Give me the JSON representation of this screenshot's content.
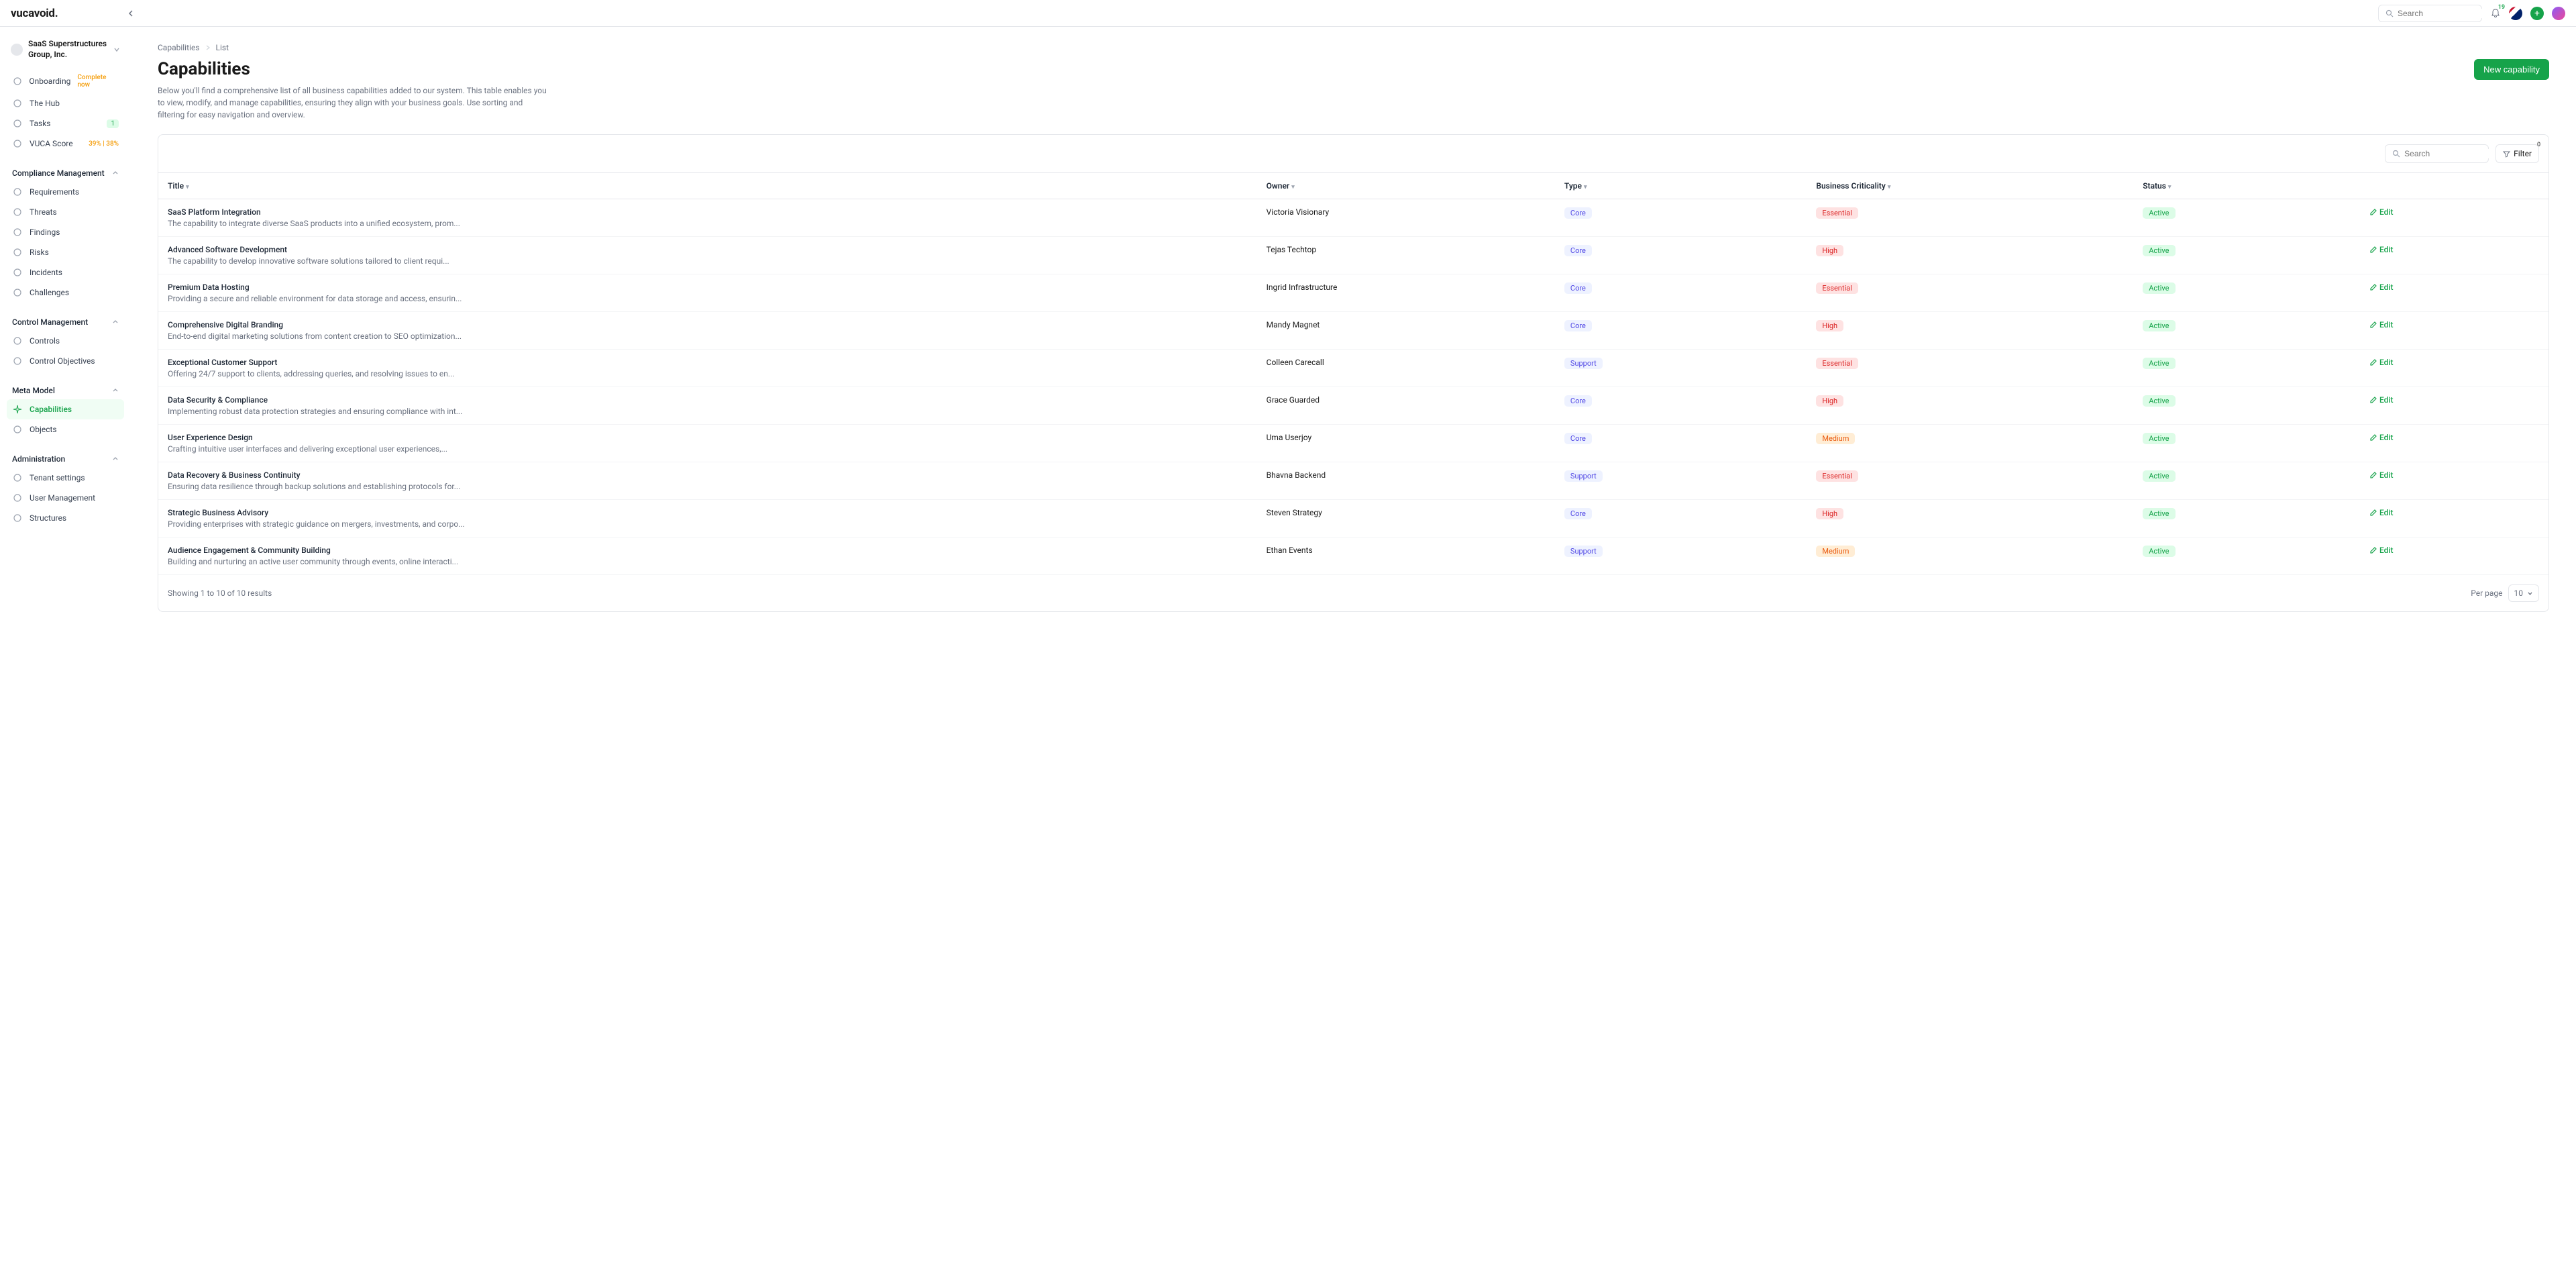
{
  "topbar": {
    "logo": "vucavoid",
    "search_placeholder": "Search",
    "notification_count": "19"
  },
  "org": {
    "name": "SaaS Superstructures Group, Inc."
  },
  "sidebar": {
    "items_top": [
      {
        "label": "Onboarding",
        "badge": "Complete now",
        "badge_type": "orange"
      },
      {
        "label": "The Hub"
      },
      {
        "label": "Tasks",
        "badge": "1",
        "badge_type": "green"
      },
      {
        "label": "VUCA Score",
        "badge": "39% | 38%",
        "badge_type": "orange"
      }
    ],
    "sections": [
      {
        "title": "Compliance Management",
        "items": [
          {
            "label": "Requirements"
          },
          {
            "label": "Threats"
          },
          {
            "label": "Findings"
          },
          {
            "label": "Risks"
          },
          {
            "label": "Incidents"
          },
          {
            "label": "Challenges"
          }
        ]
      },
      {
        "title": "Control Management",
        "items": [
          {
            "label": "Controls"
          },
          {
            "label": "Control Objectives"
          }
        ]
      },
      {
        "title": "Meta Model",
        "items": [
          {
            "label": "Capabilities",
            "active": true
          },
          {
            "label": "Objects"
          }
        ]
      },
      {
        "title": "Administration",
        "items": [
          {
            "label": "Tenant settings"
          },
          {
            "label": "User Management"
          },
          {
            "label": "Structures"
          }
        ]
      }
    ]
  },
  "breadcrumb": {
    "root": "Capabilities",
    "leaf": "List"
  },
  "page": {
    "title": "Capabilities",
    "description": "Below you'll find a comprehensive list of all business capabilities added to our system. This table enables you to view, modify, and manage capabilities, ensuring they align with your business goals. Use sorting and filtering for easy navigation and overview.",
    "new_button": "New capability"
  },
  "toolbar": {
    "search_placeholder": "Search",
    "filter_label": "Filter",
    "filter_count": "0"
  },
  "columns": {
    "title": "Title",
    "owner": "Owner",
    "type": "Type",
    "criticality": "Business Criticality",
    "status": "Status"
  },
  "type_labels": {
    "Core": "Core",
    "Support": "Support"
  },
  "criticality_labels": {
    "Essential": "Essential",
    "High": "High",
    "Medium": "Medium"
  },
  "status_labels": {
    "Active": "Active"
  },
  "edit_label": "Edit",
  "rows": [
    {
      "title": "SaaS Platform Integration",
      "desc": "The capability to integrate diverse SaaS products into a unified ecosystem, prom...",
      "owner": "Victoria Visionary",
      "type": "Core",
      "crit": "Essential",
      "status": "Active"
    },
    {
      "title": "Advanced Software Development",
      "desc": "The capability to develop innovative software solutions tailored to client requi...",
      "owner": "Tejas Techtop",
      "type": "Core",
      "crit": "High",
      "status": "Active"
    },
    {
      "title": "Premium Data Hosting",
      "desc": "Providing a secure and reliable environment for data storage and access, ensurin...",
      "owner": "Ingrid Infrastructure",
      "type": "Core",
      "crit": "Essential",
      "status": "Active"
    },
    {
      "title": "Comprehensive Digital Branding",
      "desc": "End-to-end digital marketing solutions from content creation to SEO optimization...",
      "owner": "Mandy Magnet",
      "type": "Core",
      "crit": "High",
      "status": "Active"
    },
    {
      "title": "Exceptional Customer Support",
      "desc": "Offering 24/7 support to clients, addressing queries, and resolving issues to en...",
      "owner": "Colleen Carecall",
      "type": "Support",
      "crit": "Essential",
      "status": "Active"
    },
    {
      "title": "Data Security & Compliance",
      "desc": "Implementing robust data protection strategies and ensuring compliance with int...",
      "owner": "Grace Guarded",
      "type": "Core",
      "crit": "High",
      "status": "Active"
    },
    {
      "title": "User Experience Design",
      "desc": "Crafting intuitive user interfaces and delivering exceptional user experiences,...",
      "owner": "Uma Userjoy",
      "type": "Core",
      "crit": "Medium",
      "status": "Active"
    },
    {
      "title": "Data Recovery & Business Continuity",
      "desc": "Ensuring data resilience through backup solutions and establishing protocols for...",
      "owner": "Bhavna Backend",
      "type": "Support",
      "crit": "Essential",
      "status": "Active"
    },
    {
      "title": "Strategic Business Advisory",
      "desc": "Providing enterprises with strategic guidance on mergers, investments, and corpo...",
      "owner": "Steven Strategy",
      "type": "Core",
      "crit": "High",
      "status": "Active"
    },
    {
      "title": "Audience Engagement & Community Building",
      "desc": "Building and nurturing an active user community through events, online interacti...",
      "owner": "Ethan Events",
      "type": "Support",
      "crit": "Medium",
      "status": "Active"
    }
  ],
  "footer": {
    "summary": "Showing 1 to 10 of 10 results",
    "per_page_label": "Per page",
    "per_page_value": "10"
  },
  "colors": {
    "accent": "#16a34a",
    "border": "#e5e7eb",
    "text_muted": "#6b7280"
  }
}
